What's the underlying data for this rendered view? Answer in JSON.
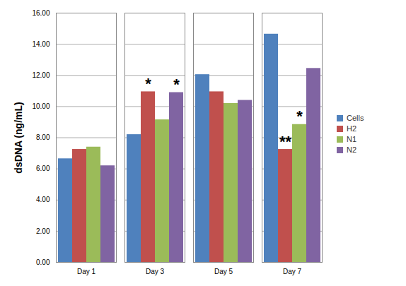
{
  "chart_data": {
    "type": "bar",
    "y_label": "dsDNA (ng/mL)",
    "categories": [
      "Day 1",
      "Day 3",
      "Day 5",
      "Day 7"
    ],
    "series": [
      {
        "name": "Cells",
        "color": "#4f81bd",
        "values": [
          6.65,
          8.2,
          12.05,
          14.65
        ]
      },
      {
        "name": "H2",
        "color": "#c0504d",
        "values": [
          7.25,
          10.95,
          10.95,
          7.25
        ]
      },
      {
        "name": "N1",
        "color": "#9bbb59",
        "values": [
          7.4,
          9.15,
          10.2,
          8.85
        ]
      },
      {
        "name": "N2",
        "color": "#8064a2",
        "values": [
          6.2,
          10.9,
          10.4,
          12.45
        ]
      }
    ],
    "annotations": [
      {
        "category": "Day 3",
        "series": "H2",
        "text": "*"
      },
      {
        "category": "Day 3",
        "series": "N2",
        "text": "*"
      },
      {
        "category": "Day 7",
        "series": "H2",
        "text": "**"
      },
      {
        "category": "Day 7",
        "series": "N1",
        "text": "*"
      }
    ],
    "ylim": [
      0,
      16
    ],
    "yticks": [
      {
        "value": 0,
        "label": "0.00"
      },
      {
        "value": 2,
        "label": "2.00"
      },
      {
        "value": 4,
        "label": "4.00"
      },
      {
        "value": 6,
        "label": "6.00"
      },
      {
        "value": 8,
        "label": "8.00"
      },
      {
        "value": 10,
        "label": "10.00"
      },
      {
        "value": 12,
        "label": "12.00"
      },
      {
        "value": 14,
        "label": "14.00"
      },
      {
        "value": 16,
        "label": "16.00"
      }
    ],
    "grid": true,
    "legend": "right"
  }
}
